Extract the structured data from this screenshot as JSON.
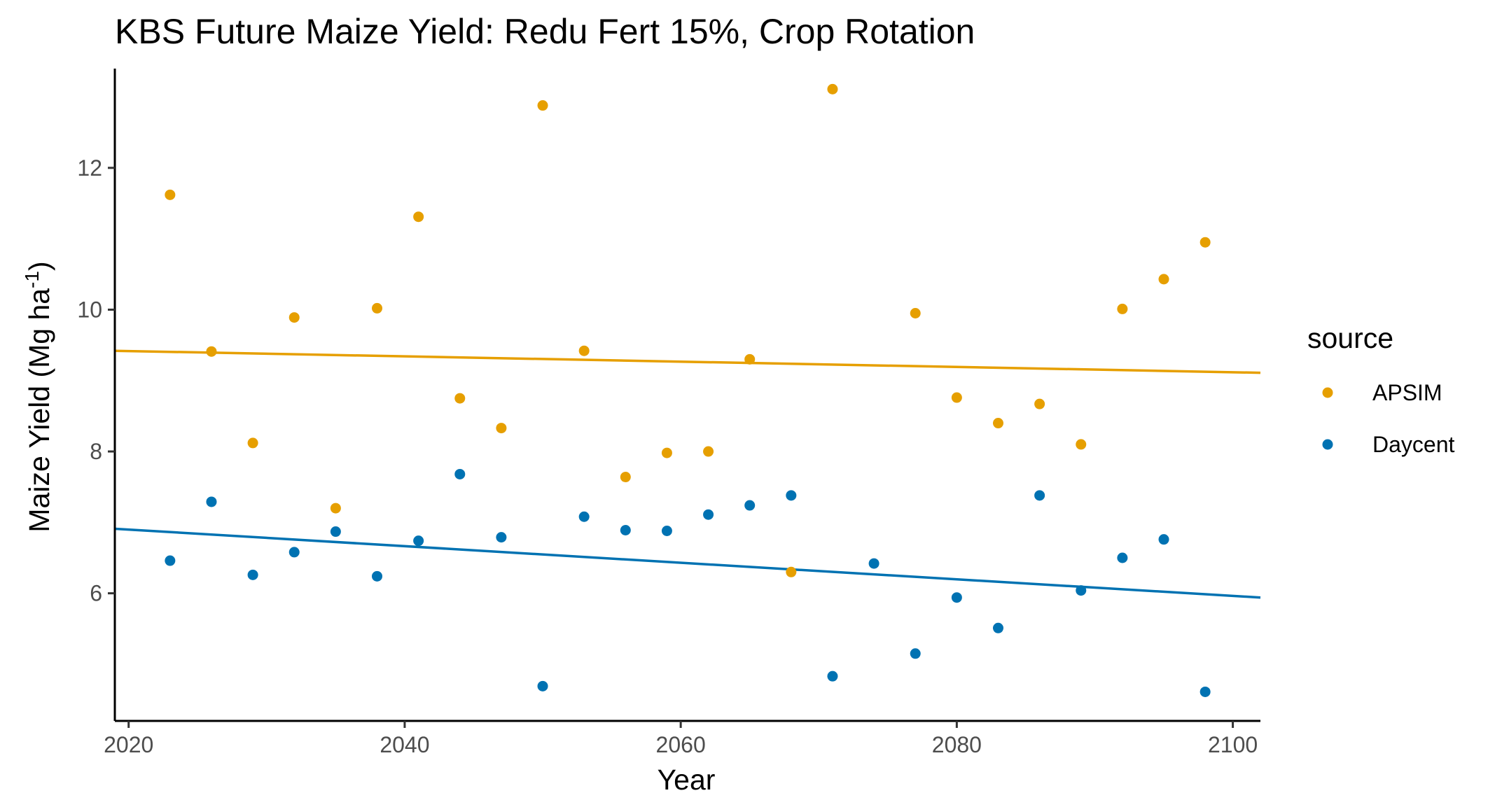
{
  "chart_data": {
    "type": "scatter",
    "title": "KBS Future Maize Yield:  Redu Fert 15%, Crop Rotation",
    "xlabel": "Year",
    "ylabel": "Maize Yield (Mg ha",
    "ylabel_superscript": "-1",
    "ylabel_suffix": ")",
    "xlim": [
      2019,
      2102
    ],
    "ylim": [
      4.2,
      13.4
    ],
    "x_ticks": [
      2020,
      2040,
      2060,
      2080,
      2100
    ],
    "x_tick_labels": [
      "2020",
      "2040",
      "2060",
      "2080",
      "2100"
    ],
    "y_ticks": [
      6,
      8,
      10,
      12
    ],
    "y_tick_labels": [
      "6",
      "8",
      "10",
      "12"
    ],
    "grid": false,
    "legend": {
      "title": "source",
      "position": "right"
    },
    "series": [
      {
        "name": "APSIM",
        "color": "#E69F00",
        "points": [
          [
            2023,
            11.62
          ],
          [
            2026,
            9.41
          ],
          [
            2029,
            8.12
          ],
          [
            2032,
            9.89
          ],
          [
            2035,
            7.2
          ],
          [
            2038,
            10.02
          ],
          [
            2041,
            11.31
          ],
          [
            2044,
            8.75
          ],
          [
            2047,
            8.33
          ],
          [
            2050,
            12.88
          ],
          [
            2053,
            9.42
          ],
          [
            2056,
            7.64
          ],
          [
            2059,
            7.98
          ],
          [
            2062,
            8.0
          ],
          [
            2065,
            9.3
          ],
          [
            2068,
            6.3
          ],
          [
            2071,
            13.11
          ],
          [
            2077,
            9.95
          ],
          [
            2080,
            8.76
          ],
          [
            2083,
            8.4
          ],
          [
            2086,
            8.67
          ],
          [
            2089,
            8.1
          ],
          [
            2092,
            10.01
          ],
          [
            2095,
            10.43
          ],
          [
            2098,
            10.95
          ]
        ],
        "trend": {
          "x0": 2019,
          "y0": 9.42,
          "x1": 2102,
          "y1": 9.11
        }
      },
      {
        "name": "Daycent",
        "color": "#0072B2",
        "points": [
          [
            2023,
            6.46
          ],
          [
            2026,
            7.29
          ],
          [
            2029,
            6.26
          ],
          [
            2032,
            6.58
          ],
          [
            2035,
            6.87
          ],
          [
            2038,
            6.24
          ],
          [
            2041,
            6.74
          ],
          [
            2044,
            7.68
          ],
          [
            2047,
            6.79
          ],
          [
            2050,
            4.69
          ],
          [
            2053,
            7.08
          ],
          [
            2056,
            6.89
          ],
          [
            2059,
            6.88
          ],
          [
            2062,
            7.11
          ],
          [
            2065,
            7.24
          ],
          [
            2068,
            7.38
          ],
          [
            2071,
            4.83
          ],
          [
            2074,
            6.42
          ],
          [
            2077,
            5.15
          ],
          [
            2080,
            5.94
          ],
          [
            2083,
            5.51
          ],
          [
            2086,
            7.38
          ],
          [
            2089,
            6.04
          ],
          [
            2092,
            6.5
          ],
          [
            2095,
            6.76
          ],
          [
            2098,
            4.61
          ]
        ],
        "trend": {
          "x0": 2019,
          "y0": 6.91,
          "x1": 2102,
          "y1": 5.94
        }
      }
    ]
  }
}
